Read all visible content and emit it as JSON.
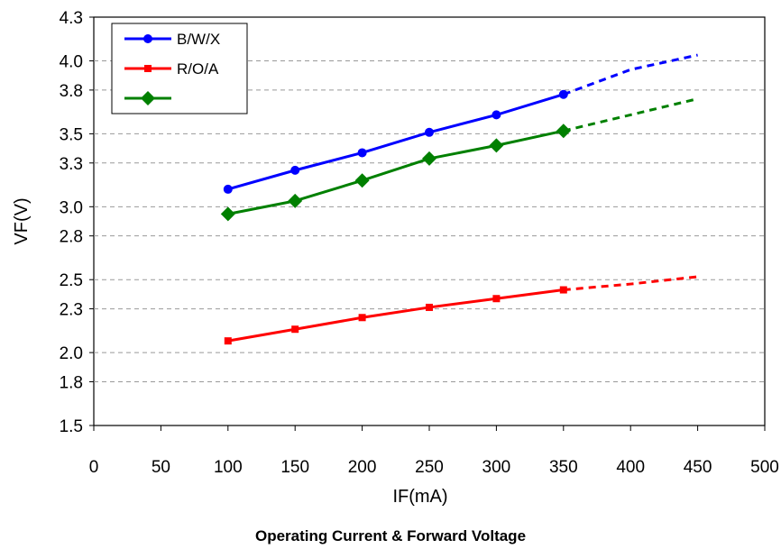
{
  "chart_data": {
    "type": "line",
    "title": "Operating Current & Forward Voltage",
    "xlabel": "IF(mA)",
    "ylabel": "VF(V)",
    "xlim": [
      0,
      500
    ],
    "ylim": [
      1.5,
      4.3
    ],
    "x_ticks": [
      0,
      50,
      100,
      150,
      200,
      250,
      300,
      350,
      400,
      450,
      500
    ],
    "y_ticks": [
      1.5,
      1.8,
      2.0,
      2.3,
      2.5,
      2.8,
      3.0,
      3.3,
      3.5,
      3.8,
      4.0,
      4.3
    ],
    "y_tick_labels": [
      "1.5",
      "1.8",
      "2.0",
      "2.3",
      "2.5",
      "2.8",
      "3.0",
      "3.3",
      "3.5",
      "3.8",
      "4.0",
      "4.3"
    ],
    "grid": "horizontal-dashed",
    "legend_position": "top-left",
    "series": [
      {
        "name": "B/W/X",
        "color": "#0000ff",
        "marker": "circle",
        "x": [
          100,
          150,
          200,
          250,
          300,
          350
        ],
        "y": [
          3.12,
          3.25,
          3.37,
          3.51,
          3.63,
          3.77
        ],
        "projected_x": [
          350,
          400,
          450
        ],
        "projected_y": [
          3.77,
          3.94,
          4.04
        ]
      },
      {
        "name": "R/O/A",
        "color": "#ff0000",
        "marker": "square",
        "x": [
          100,
          150,
          200,
          250,
          300,
          350
        ],
        "y": [
          2.08,
          2.16,
          2.24,
          2.31,
          2.37,
          2.43
        ],
        "projected_x": [
          350,
          400,
          450
        ],
        "projected_y": [
          2.43,
          2.47,
          2.52
        ]
      },
      {
        "name": "",
        "color": "#008000",
        "marker": "diamond",
        "x": [
          100,
          150,
          200,
          250,
          300,
          350
        ],
        "y": [
          2.95,
          3.04,
          3.18,
          3.33,
          3.42,
          3.52
        ],
        "projected_x": [
          350,
          400,
          450
        ],
        "projected_y": [
          3.52,
          3.63,
          3.74
        ]
      }
    ]
  }
}
